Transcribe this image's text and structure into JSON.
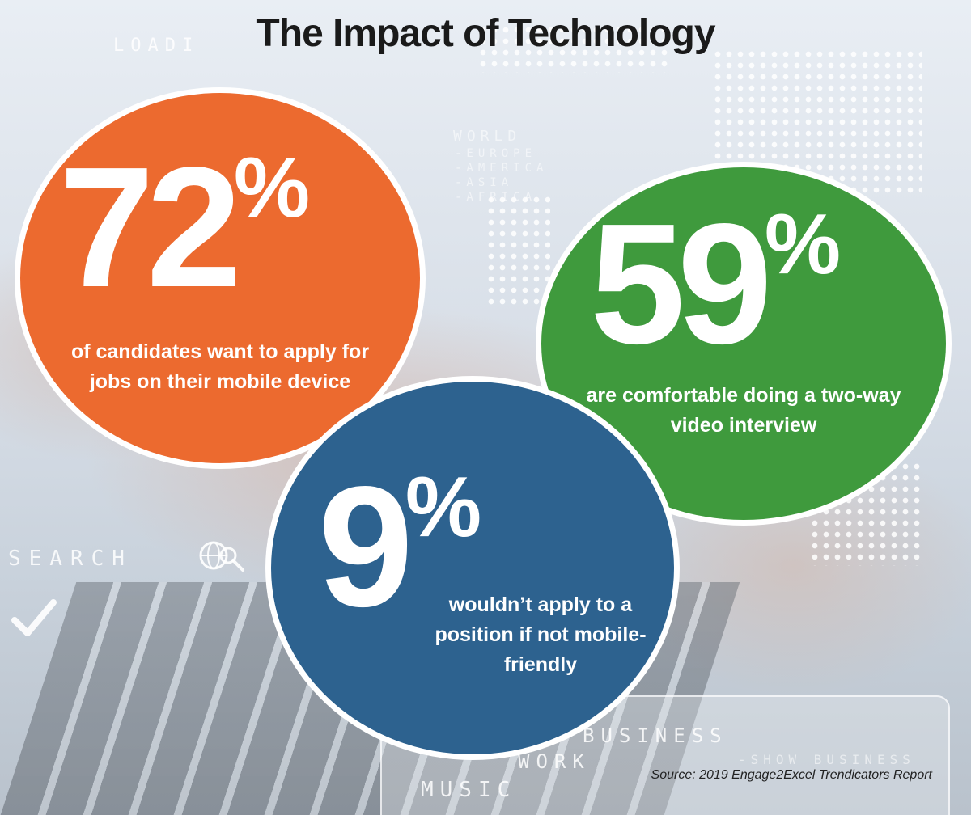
{
  "title": "The Impact of Technology",
  "background": {
    "labels": [
      "LOADI",
      "WORLD",
      "-EUROPE",
      "-AMERICA",
      "-ASIA",
      "-AFRICA",
      "SEARCH",
      "BUSINESS",
      "WORK",
      "MUSIC",
      "-SHOW BUSINESS"
    ],
    "icons": [
      "checkmark-icon",
      "globe-search-icon",
      "laptop"
    ]
  },
  "stats": [
    {
      "id": "mobile-apply",
      "number": "72",
      "unit": "%",
      "description_lines": [
        "of candidates want to apply for",
        "jobs on their mobile device"
      ],
      "color": "#ec6a2f"
    },
    {
      "id": "video-interview",
      "number": "59",
      "unit": "%",
      "description_lines": [
        "are comfortable doing a two-way",
        "video interview"
      ],
      "color": "#3f9a3d"
    },
    {
      "id": "not-mobile-friendly",
      "number": "9",
      "unit": "%",
      "description_lines": [
        "wouldn’t apply to a",
        "position if not mobile-",
        "friendly"
      ],
      "color": "#2d628f"
    }
  ],
  "source": "Source: 2019 Engage2Excel Trendicators Report"
}
